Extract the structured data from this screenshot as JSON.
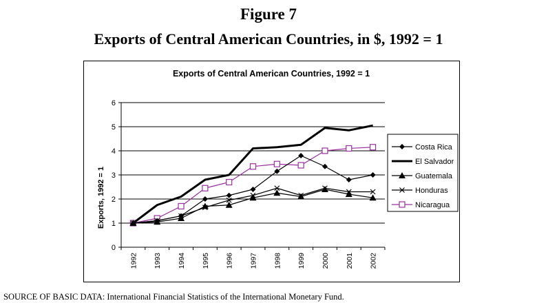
{
  "figure": {
    "label": "Figure 7",
    "title": "Exports of Central American Countries, in $, 1992 = 1",
    "source": "SOURCE OF BASIC DATA: International Financial Statistics of the International Monetary Fund."
  },
  "chart_data": {
    "type": "line",
    "title": "Exports of Central American Countries, 1992 = 1",
    "xlabel": "",
    "ylabel": "Exports, 1992 = 1",
    "ylim": [
      0,
      6
    ],
    "yticks": [
      "0",
      "1",
      "2",
      "3",
      "4",
      "5",
      "6"
    ],
    "grid": "horizontal",
    "legend_position": "right",
    "x": [
      "1992",
      "1993",
      "1994",
      "1995",
      "1996",
      "1997",
      "1998",
      "1999",
      "2000",
      "2001",
      "2002"
    ],
    "series": [
      {
        "name": "Costa Rica",
        "marker": "diamond",
        "color": "#000000",
        "values": [
          1.0,
          1.1,
          1.3,
          2.0,
          2.15,
          2.4,
          3.15,
          3.8,
          3.35,
          2.8,
          3.0
        ]
      },
      {
        "name": "El Salvador",
        "marker": "none",
        "color": "#000000",
        "values": [
          1.0,
          1.75,
          2.1,
          2.8,
          3.0,
          4.1,
          4.15,
          4.25,
          4.95,
          4.85,
          5.05
        ]
      },
      {
        "name": "Guatemala",
        "marker": "triangle",
        "color": "#000000",
        "values": [
          1.0,
          1.05,
          1.2,
          1.7,
          1.75,
          2.05,
          2.25,
          2.1,
          2.4,
          2.2,
          2.05
        ]
      },
      {
        "name": "Honduras",
        "marker": "x",
        "color": "#000000",
        "values": [
          1.0,
          1.1,
          1.3,
          1.65,
          1.95,
          2.15,
          2.45,
          2.15,
          2.45,
          2.3,
          2.3
        ]
      },
      {
        "name": "Nicaragua",
        "marker": "square",
        "color": "#9a2fa0",
        "values": [
          1.0,
          1.2,
          1.7,
          2.45,
          2.7,
          3.35,
          3.45,
          3.4,
          4.0,
          4.1,
          4.15
        ]
      }
    ]
  }
}
